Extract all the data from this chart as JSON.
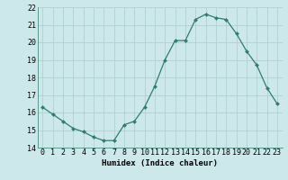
{
  "x": [
    0,
    1,
    2,
    3,
    4,
    5,
    6,
    7,
    8,
    9,
    10,
    11,
    12,
    13,
    14,
    15,
    16,
    17,
    18,
    19,
    20,
    21,
    22,
    23
  ],
  "y": [
    16.3,
    15.9,
    15.5,
    15.1,
    14.9,
    14.6,
    14.4,
    14.4,
    15.3,
    15.5,
    16.3,
    17.5,
    19.0,
    20.1,
    20.1,
    21.3,
    21.6,
    21.4,
    21.3,
    20.5,
    19.5,
    18.7,
    17.4,
    16.5
  ],
  "line_color": "#2e7d6e",
  "marker": "D",
  "marker_size": 2.0,
  "bg_color": "#cce8ea",
  "grid_color": "#b0d0d3",
  "xlabel": "Humidex (Indice chaleur)",
  "ylim": [
    14,
    22
  ],
  "xlim": [
    -0.5,
    23.5
  ],
  "yticks": [
    14,
    15,
    16,
    17,
    18,
    19,
    20,
    21,
    22
  ],
  "xticks": [
    0,
    1,
    2,
    3,
    4,
    5,
    6,
    7,
    8,
    9,
    10,
    11,
    12,
    13,
    14,
    15,
    16,
    17,
    18,
    19,
    20,
    21,
    22,
    23
  ],
  "xlabel_fontsize": 6.5,
  "tick_fontsize": 6.0,
  "fig_width": 3.2,
  "fig_height": 2.0,
  "dpi": 100
}
